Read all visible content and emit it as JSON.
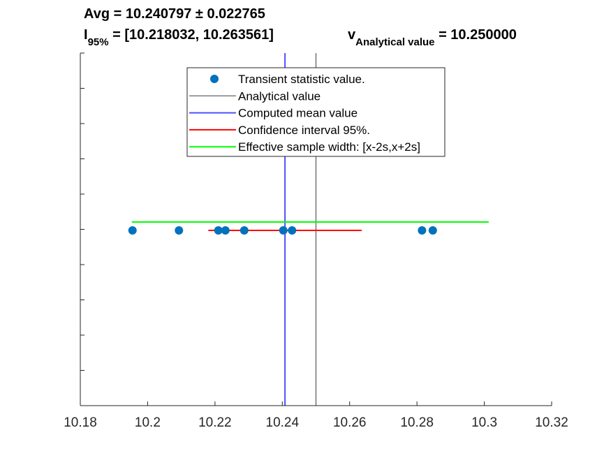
{
  "title": {
    "avg_line": "Avg = 10.240797 ± 0.022765",
    "interval_prefix": "I",
    "interval_sub": "95%",
    "interval_value": " = [10.218032, 10.263561]",
    "analytical_prefix": "v",
    "analytical_sub": "Analytical value",
    "analytical_value": " = 10.250000"
  },
  "chart_data": {
    "type": "scatter",
    "xlim": [
      10.18,
      10.32
    ],
    "xticks": [
      10.18,
      10.2,
      10.22,
      10.24,
      10.26,
      10.28,
      10.3,
      10.32
    ],
    "xtick_labels": [
      "10.18",
      "10.2",
      "10.22",
      "10.24",
      "10.26",
      "10.28",
      "10.3",
      "10.32"
    ],
    "y_tick_count": 10,
    "grid": false,
    "legend_position": "top-center",
    "points": [
      10.1955,
      10.2093,
      10.221,
      10.2231,
      10.2287,
      10.2403,
      10.2429,
      10.2815,
      10.2847
    ],
    "analytical_value": 10.25,
    "computed_mean": 10.240797,
    "confidence_interval": [
      10.218032,
      10.263561
    ],
    "effective_sample_width": [
      10.1953,
      10.3013
    ],
    "colors": {
      "points": "#0072BD",
      "analytical": "#404040",
      "mean": "#4f4fff",
      "confidence": "#ff0000",
      "effective": "#00ff00",
      "axis": "#262626"
    },
    "legend": [
      {
        "label": "Transient statistic value.",
        "kind": "marker",
        "color": "#0072BD"
      },
      {
        "label": "Analytical value",
        "kind": "line",
        "color": "#404040"
      },
      {
        "label": "Computed mean value",
        "kind": "line",
        "color": "#4f4fff"
      },
      {
        "label": "Confidence interval 95%.",
        "kind": "line",
        "color": "#ff0000"
      },
      {
        "label": "Effective sample width: [x-2s,x+2s]",
        "kind": "line",
        "color": "#00ff00"
      }
    ]
  }
}
